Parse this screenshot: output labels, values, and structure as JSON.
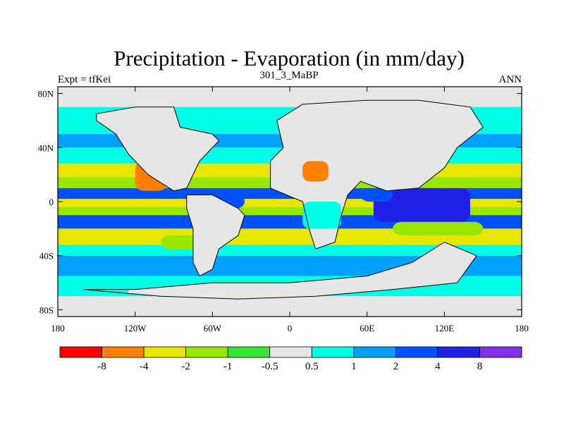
{
  "chart_data": {
    "type": "heatmap",
    "title": "Precipitation - Evaporation (in mm/day)",
    "subtitle": "301_3_MaBP",
    "left_label": "Expt = tfKei",
    "right_label": "ANN",
    "x_ticks": [
      "180",
      "120W",
      "60W",
      "0",
      "60E",
      "120E",
      "180"
    ],
    "y_ticks": [
      "80N",
      "40N",
      "0",
      "40S",
      "80S"
    ],
    "xlim": [
      -180,
      180
    ],
    "ylim": [
      -85,
      85
    ],
    "colorbar": {
      "colors": [
        "#ff0000",
        "#ff8000",
        "#e6e600",
        "#99e600",
        "#33e633",
        "#e6e6e6",
        "#00ffe6",
        "#00a0ff",
        "#0050ff",
        "#2020e6",
        "#8030e6"
      ],
      "labels": [
        "-8",
        "-4",
        "-2",
        "-1",
        "-0.5",
        "0.5",
        "1",
        "2",
        "4",
        "8"
      ]
    },
    "zonal_bands": [
      {
        "lat": [
          70,
          85
        ],
        "level": 5
      },
      {
        "lat": [
          50,
          70
        ],
        "level": 6
      },
      {
        "lat": [
          40,
          50
        ],
        "level": 7
      },
      {
        "lat": [
          28,
          40
        ],
        "level": 6
      },
      {
        "lat": [
          18,
          28
        ],
        "level": 2
      },
      {
        "lat": [
          10,
          18
        ],
        "level": 3
      },
      {
        "lat": [
          2,
          10
        ],
        "level": 8
      },
      {
        "lat": [
          -4,
          2
        ],
        "level": 2
      },
      {
        "lat": [
          -10,
          -4
        ],
        "level": 3
      },
      {
        "lat": [
          -20,
          -10
        ],
        "level": 8
      },
      {
        "lat": [
          -32,
          -20
        ],
        "level": 2
      },
      {
        "lat": [
          -40,
          -32
        ],
        "level": 6
      },
      {
        "lat": [
          -55,
          -40
        ],
        "level": 7
      },
      {
        "lat": [
          -70,
          -55
        ],
        "level": 6
      },
      {
        "lat": [
          -85,
          -70
        ],
        "level": 5
      }
    ],
    "patches": [
      {
        "lon": [
          -120,
          -95
        ],
        "lat": [
          8,
          30
        ],
        "level": 1
      },
      {
        "lon": [
          -100,
          -60
        ],
        "lat": [
          -35,
          -25
        ],
        "level": 3
      },
      {
        "lon": [
          65,
          140
        ],
        "lat": [
          -15,
          10
        ],
        "level": 9
      },
      {
        "lon": [
          -55,
          -35
        ],
        "lat": [
          -5,
          5
        ],
        "level": 8
      },
      {
        "lon": [
          55,
          80
        ],
        "lat": [
          0,
          10
        ],
        "level": 8
      },
      {
        "lon": [
          80,
          150
        ],
        "lat": [
          -25,
          -15
        ],
        "level": 3
      }
    ],
    "land_regions": [
      {
        "name": "north-america",
        "coast": [
          [
            -85,
            55
          ],
          [
            -60,
            50
          ],
          [
            -55,
            45
          ],
          [
            -70,
            30
          ],
          [
            -75,
            20
          ],
          [
            -80,
            10
          ],
          [
            -90,
            8
          ],
          [
            -110,
            20
          ],
          [
            -125,
            35
          ],
          [
            -135,
            50
          ],
          [
            -150,
            60
          ],
          [
            -150,
            65
          ],
          [
            -120,
            70
          ],
          [
            -90,
            70
          ]
        ],
        "level": 5
      },
      {
        "name": "south-america",
        "coast": [
          [
            -80,
            5
          ],
          [
            -60,
            5
          ],
          [
            -40,
            -5
          ],
          [
            -35,
            -10
          ],
          [
            -40,
            -25
          ],
          [
            -55,
            -35
          ],
          [
            -60,
            -50
          ],
          [
            -70,
            -55
          ],
          [
            -75,
            -45
          ],
          [
            -75,
            -20
          ],
          [
            -80,
            -5
          ]
        ],
        "level": 5
      },
      {
        "name": "africa-eurasia",
        "coast": [
          [
            -10,
            60
          ],
          [
            10,
            72
          ],
          [
            60,
            75
          ],
          [
            100,
            75
          ],
          [
            140,
            70
          ],
          [
            150,
            55
          ],
          [
            130,
            40
          ],
          [
            120,
            25
          ],
          [
            100,
            10
          ],
          [
            75,
            8
          ],
          [
            55,
            15
          ],
          [
            45,
            5
          ],
          [
            40,
            -10
          ],
          [
            35,
            -30
          ],
          [
            20,
            -35
          ],
          [
            15,
            -20
          ],
          [
            10,
            0
          ],
          [
            -15,
            10
          ],
          [
            -15,
            30
          ],
          [
            -5,
            40
          ]
        ],
        "level": 5
      },
      {
        "name": "australia-antarctica",
        "coast": [
          [
            -160,
            -65
          ],
          [
            -100,
            -70
          ],
          [
            -40,
            -72
          ],
          [
            20,
            -70
          ],
          [
            80,
            -65
          ],
          [
            130,
            -60
          ],
          [
            145,
            -40
          ],
          [
            120,
            -30
          ],
          [
            95,
            -45
          ],
          [
            60,
            -55
          ],
          [
            0,
            -60
          ],
          [
            -60,
            -60
          ],
          [
            -120,
            -65
          ]
        ],
        "level": 5
      }
    ],
    "land_patches": [
      {
        "lon": [
          10,
          30
        ],
        "lat": [
          15,
          30
        ],
        "level": 1
      },
      {
        "lon": [
          10,
          40
        ],
        "lat": [
          -20,
          0
        ],
        "level": 6
      },
      {
        "lon": [
          -150,
          -125
        ],
        "lat": [
          -70,
          -55
        ],
        "level": 6
      }
    ]
  }
}
